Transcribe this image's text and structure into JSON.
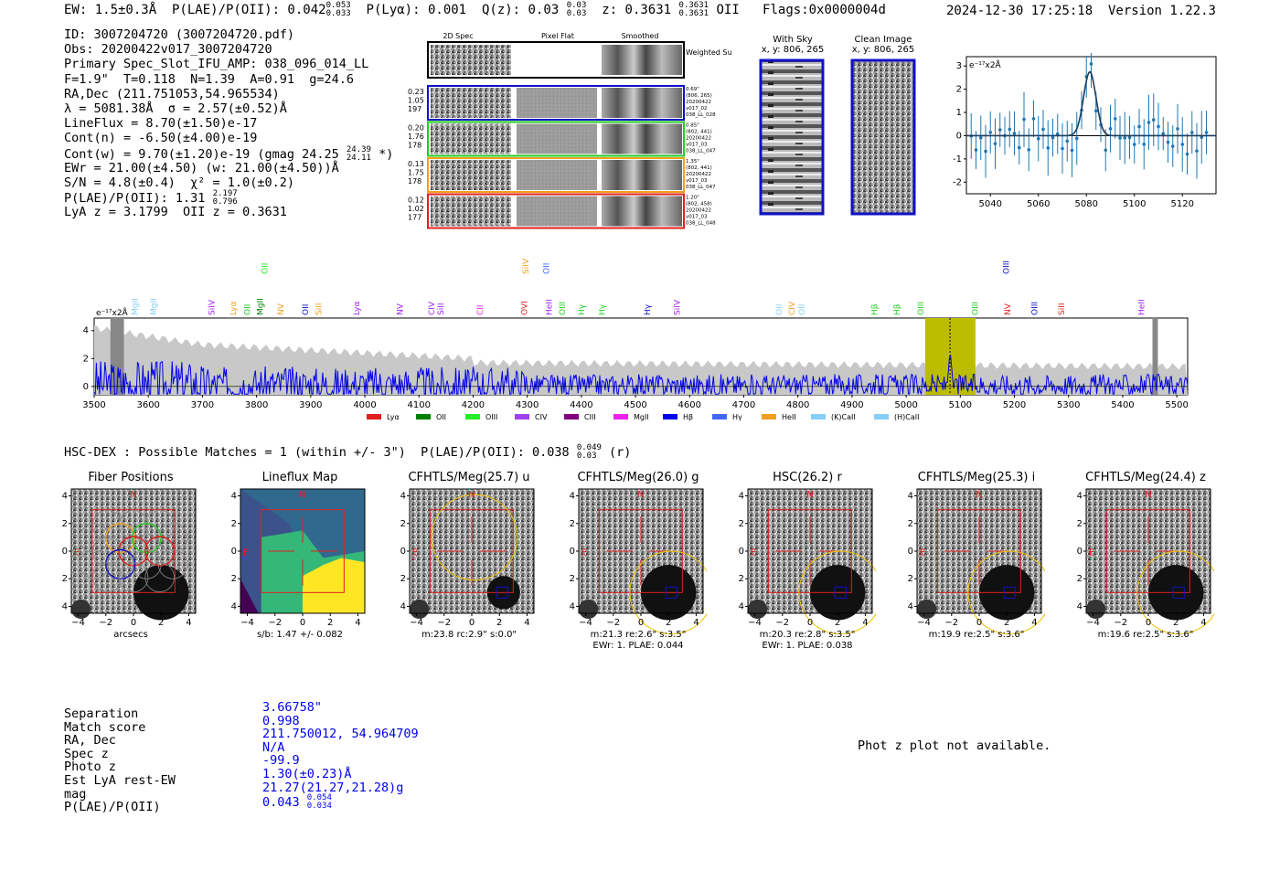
{
  "header": {
    "top_left": "EW: 1.5±0.3Å  P(LAE)/P(OII): 0.042",
    "plae_hi": "0.053",
    "plae_lo": "0.033",
    "ply_a": "  P(Lyα): 0.001  Q(z): 0.03",
    "qz_hi": "0.03",
    "qz_lo": "0.03",
    "z_text": "  z: 0.3631",
    "z_hi": "0.3631",
    "z_lo": "0.3631",
    "z_tail": " OII   Flags:0x0000004d",
    "timestamp": "2024-12-30 17:25:18  Version 1.22.3"
  },
  "info": {
    "id": "ID: 3007204720 (3007204720.pdf)",
    "obs": "Obs: 20200422v017_3007204720",
    "primary": "Primary Spec_Slot_IFU_AMP: 038_096_014_LL",
    "params": "F=1.9\"  T=0.118  N=1.39  A=0.91  g=24.6",
    "radec": "RA,Dec (211.751053,54.965534)",
    "lambda": "λ = 5081.38Å  σ = 2.57(±0.52)Å",
    "lineflux": "LineFlux = 8.70(±1.50)e-17",
    "contn": "Cont(n) = -6.50(±4.00)e-19",
    "contw": "Cont(w) = 9.70(±1.20)e-19 (gmag 24.25",
    "gmag_hi": "24.39",
    "gmag_lo": "24.11",
    "contw_tail": " *)",
    "ewr": "EWr = 21.00(±4.50) (w: 21.00(±4.50))Å",
    "sn": "S/N = 4.8(±0.4)  χ² = 1.0(±0.2)",
    "plae": "P(LAE)/P(OII): 1.31",
    "plae_hi": "2.197",
    "plae_lo": "0.796",
    "lya": "LyA z = 3.1799  OII z = 0.3631"
  },
  "spec2d": {
    "col_titles": [
      "2D Spec",
      "Pixel Flat",
      "Smoothed"
    ],
    "weighted_label": "Weighted Sum",
    "rows": [
      {
        "left": [
          "0.23",
          "1.05",
          "197"
        ],
        "right": [
          "0.69\"",
          "(806, 265)",
          "20200422",
          "v017_02",
          "038_LL_028"
        ],
        "color": "#1010c8"
      },
      {
        "left": [
          "0.20",
          "1.76",
          "178"
        ],
        "right": [
          "0.85\"",
          "(802, 441)",
          "20200422",
          "v017_03",
          "038_LL_047"
        ],
        "color": "#22cc22"
      },
      {
        "left": [
          "0.13",
          "1.75",
          "178"
        ],
        "right": [
          "1.35\"",
          "(802, 441)",
          "20200422",
          "v017_03",
          "038_LL_047"
        ],
        "color": "#f0a020"
      },
      {
        "left": [
          "0.12",
          "1.02",
          "177"
        ],
        "right": [
          "1.20\"",
          "(802, 458)",
          "20200422",
          "v017_03",
          "038_LL_048"
        ],
        "color": "#e02020"
      }
    ]
  },
  "sky": {
    "title1": "With Sky",
    "coord1": "x, y: 806, 265",
    "title2": "Clean Image",
    "coord2": "x, y: 806, 265"
  },
  "zoom_plot": {
    "ylabel": "e⁻¹⁷x2Å",
    "xticks": [
      "5040",
      "5060",
      "5080",
      "5100",
      "5120"
    ],
    "yticks": [
      "3",
      "2",
      "1",
      "0",
      "-1",
      "-2"
    ]
  },
  "full_spec": {
    "ylabel": "e⁻¹⁷x2Å",
    "xticks": [
      "3500",
      "3600",
      "3700",
      "3800",
      "3900",
      "4000",
      "4100",
      "4200",
      "4300",
      "4400",
      "4500",
      "4600",
      "4700",
      "4800",
      "4900",
      "5000",
      "5100",
      "5200",
      "5300",
      "5400",
      "5500"
    ],
    "yticks": [
      "4",
      "2",
      "0"
    ],
    "lines": [
      {
        "name": "MgII",
        "x": 3580,
        "color": "#87cefa",
        "row": 0
      },
      {
        "name": "MgII",
        "x": 3615,
        "color": "#87cefa",
        "row": 0
      },
      {
        "name": "SiIV",
        "x": 3722,
        "color": "#a020f0",
        "row": 0
      },
      {
        "name": "Lyα",
        "x": 3762,
        "color": "#f0a020",
        "row": 0
      },
      {
        "name": "OII",
        "x": 3788,
        "color": "#22cc22",
        "row": 0
      },
      {
        "name": "MgII",
        "x": 3812,
        "color": "#008000",
        "row": 0
      },
      {
        "name": "OII",
        "x": 3820,
        "color": "#22ee22",
        "row": 1
      },
      {
        "name": "NV",
        "x": 3850,
        "color": "#f0a020",
        "row": 0
      },
      {
        "name": "OII",
        "x": 3895,
        "color": "#1010c8",
        "row": 0
      },
      {
        "name": "SiII",
        "x": 3920,
        "color": "#f0a020",
        "row": 0
      },
      {
        "name": "Lyα",
        "x": 3990,
        "color": "#a020f0",
        "row": 0
      },
      {
        "name": "NV",
        "x": 4070,
        "color": "#a020f0",
        "row": 0
      },
      {
        "name": "CIV",
        "x": 4128,
        "color": "#a020f0",
        "row": 0
      },
      {
        "name": "SiII",
        "x": 4145,
        "color": "#a020f0",
        "row": 0
      },
      {
        "name": "CII",
        "x": 4218,
        "color": "#ee22ee",
        "row": 0
      },
      {
        "name": "OVI",
        "x": 4300,
        "color": "#e02020",
        "row": 0
      },
      {
        "name": "SiIV",
        "x": 4302,
        "color": "#f0a020",
        "row": 1
      },
      {
        "name": "OII",
        "x": 4340,
        "color": "#4466ff",
        "row": 1
      },
      {
        "name": "HeII",
        "x": 4345,
        "color": "#a020f0",
        "row": 0
      },
      {
        "name": "OIII",
        "x": 4370,
        "color": "#22cc22",
        "row": 0
      },
      {
        "name": "Hγ",
        "x": 4405,
        "color": "#22cc22",
        "row": 0
      },
      {
        "name": "Hγ",
        "x": 4443,
        "color": "#22cc22",
        "row": 0
      },
      {
        "name": "Hγ",
        "x": 4527,
        "color": "#1010c8",
        "row": 0
      },
      {
        "name": "SiIV",
        "x": 4582,
        "color": "#a020f0",
        "row": 0
      },
      {
        "name": "OII",
        "x": 4770,
        "color": "#87cefa",
        "row": 0
      },
      {
        "name": "CIV",
        "x": 4794,
        "color": "#f0a020",
        "row": 0
      },
      {
        "name": "OII",
        "x": 4812,
        "color": "#87cefa",
        "row": 0
      },
      {
        "name": "Hβ",
        "x": 4947,
        "color": "#22cc22",
        "row": 0
      },
      {
        "name": "Hβ",
        "x": 4988,
        "color": "#22cc22",
        "row": 0
      },
      {
        "name": "OIII",
        "x": 5032,
        "color": "#22cc22",
        "row": 0
      },
      {
        "name": "OIII",
        "x": 5132,
        "color": "#22cc22",
        "row": 0
      },
      {
        "name": "NV",
        "x": 5192,
        "color": "#e02020",
        "row": 0
      },
      {
        "name": "OIII",
        "x": 5190,
        "color": "#1010c8",
        "row": 1
      },
      {
        "name": "OIII",
        "x": 5242,
        "color": "#1010c8",
        "row": 0
      },
      {
        "name": "SiII",
        "x": 5292,
        "color": "#e02020",
        "row": 0
      },
      {
        "name": "HeII",
        "x": 5440,
        "color": "#a020f0",
        "row": 0
      }
    ],
    "legend": [
      {
        "name": "Lyα",
        "color": "#e02020"
      },
      {
        "name": "OII",
        "color": "#008000"
      },
      {
        "name": "OIII",
        "color": "#22ee22"
      },
      {
        "name": "CIV",
        "color": "#a040f0"
      },
      {
        "name": "CIII",
        "color": "#800080"
      },
      {
        "name": "MgII",
        "color": "#ee22ee"
      },
      {
        "name": "Hβ",
        "color": "#0000ee"
      },
      {
        "name": "Hγ",
        "color": "#4466ff"
      },
      {
        "name": "HeII",
        "color": "#f0a020"
      },
      {
        "name": "(K)CaII",
        "color": "#87cefa"
      },
      {
        "name": "(H)CaII",
        "color": "#87cefa"
      }
    ]
  },
  "hsc": {
    "header": "HSC-DEX : Possible Matches = 1 (within +/- 3\")  P(LAE)/P(OII): 0.038",
    "hi": "0.049",
    "lo": "0.03",
    "tail": " (r)"
  },
  "cutouts": [
    {
      "title": "Fiber Positions",
      "sub": [
        "arcsecs"
      ]
    },
    {
      "title": "Lineflux Map",
      "sub": [
        "s/b: 1.47 +/- 0.082"
      ]
    },
    {
      "title": "CFHTLS/Meg(25.7) u",
      "sub": [
        "m:23.8 rc:2.9\"  s:0.0\""
      ]
    },
    {
      "title": "CFHTLS/Meg(26.0) g",
      "sub": [
        "m:21.3  re:2.6\"  s:3.5\"",
        "EWr: 1. PLAE: 0.044"
      ]
    },
    {
      "title": "HSC(26.2) r",
      "sub": [
        "m:20.3  re:2.8\"  s:3.5\"",
        "EWr: 1. PLAE: 0.038"
      ]
    },
    {
      "title": "CFHTLS/Meg(25.3) i",
      "sub": [
        "m:19.9  re:2.5\"  s:3.6\""
      ]
    },
    {
      "title": "CFHTLS/Meg(24.4) z",
      "sub": [
        "m:19.6  re:2.5\"  s:3.6\""
      ]
    }
  ],
  "cutout_axes": {
    "ticks": [
      "−4",
      "−2",
      "0",
      "2",
      "4"
    ],
    "yticks": [
      "4",
      "2",
      "0",
      "−2",
      "−4"
    ],
    "n": "N",
    "e": "E"
  },
  "match": {
    "labels": [
      "Separation",
      "Match score",
      "RA, Dec",
      "Spec z",
      "Photo z",
      "Est LyA rest-EW",
      "mag",
      "P(LAE)/P(OII)"
    ],
    "values": [
      "3.66758\"",
      "0.998",
      "211.750012, 54.964709",
      "N/A",
      "-99.9",
      "1.30(±0.23)Å",
      "21.27(21.27,21.28)g",
      "0.043"
    ],
    "plae_hi": "0.054",
    "plae_lo": "0.034"
  },
  "photz": "Phot z plot not available."
}
